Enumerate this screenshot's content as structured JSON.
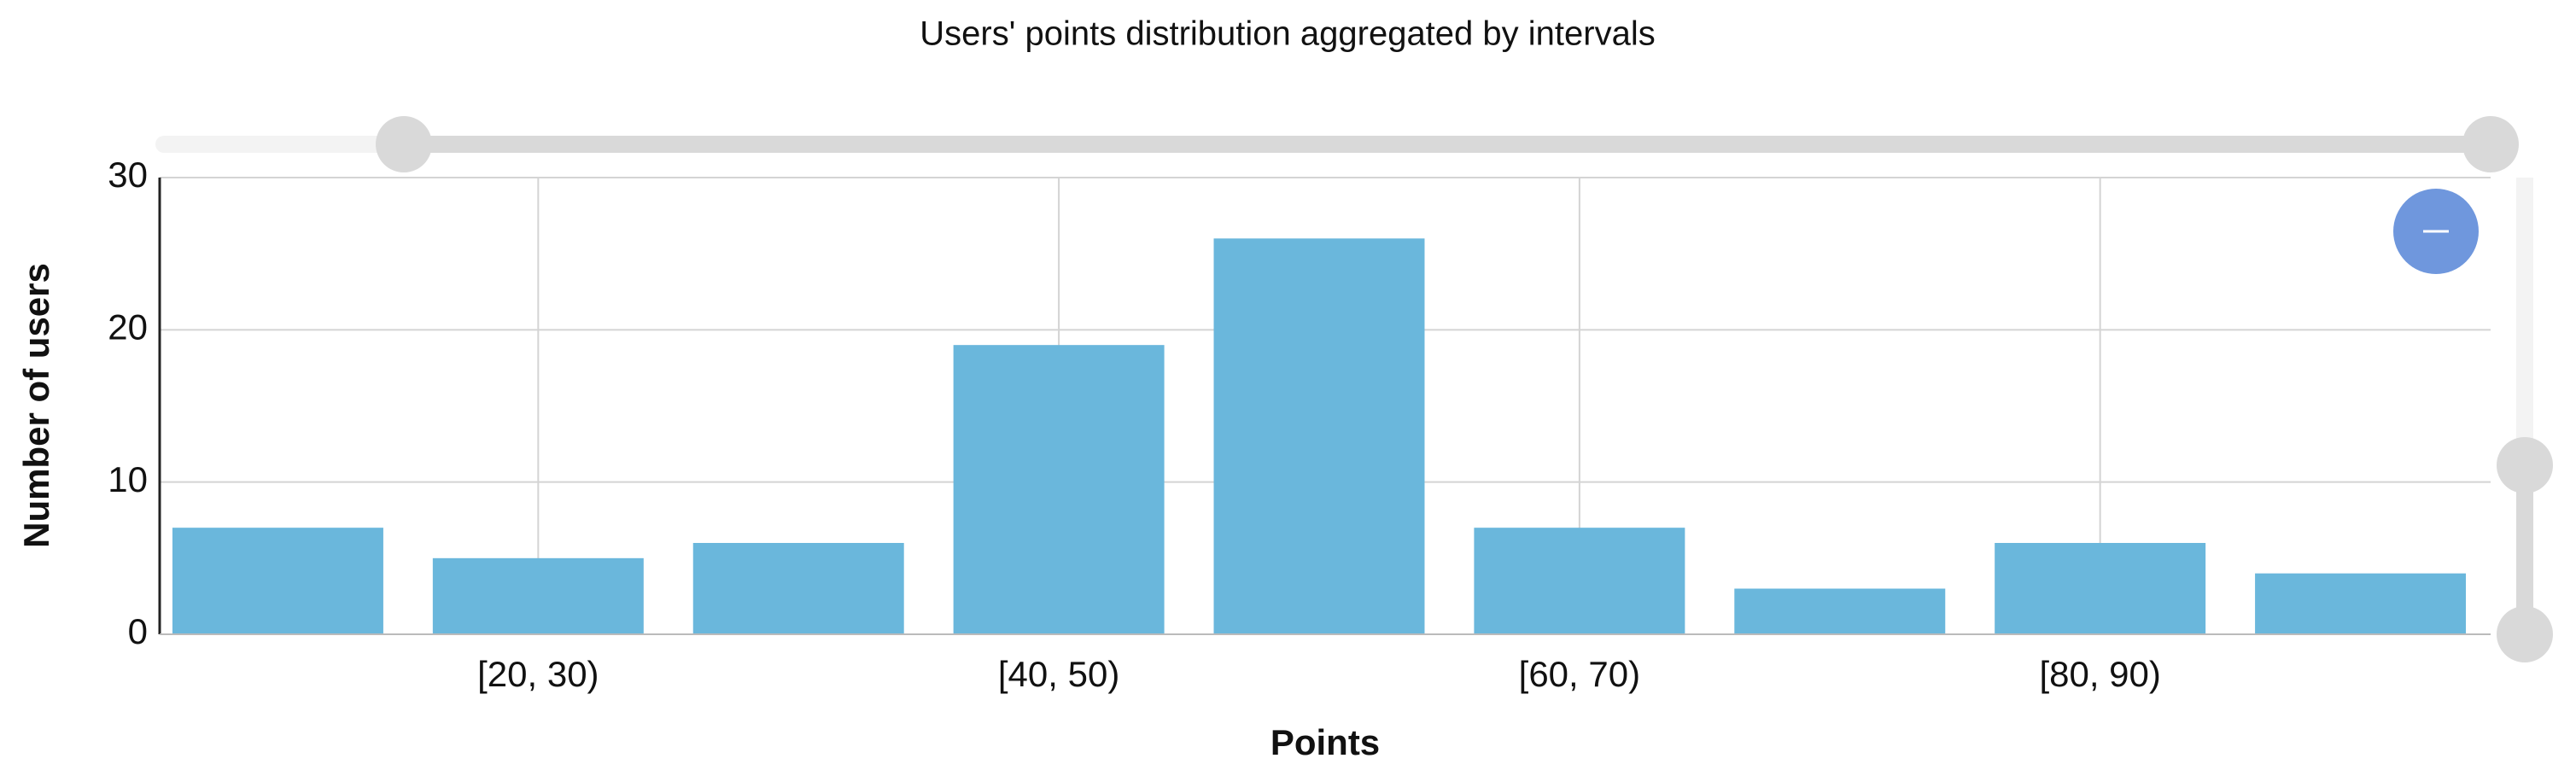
{
  "chart_data": {
    "type": "bar",
    "title": "Users' points distribution aggregated by intervals",
    "x_label": "Points",
    "y_label": "Number of users",
    "categories": [
      null,
      "[20, 30)",
      null,
      "[40, 50)",
      null,
      "[60, 70)",
      null,
      "[80, 90)",
      null
    ],
    "values": [
      7,
      5,
      6,
      19,
      26,
      7,
      3,
      6,
      4
    ],
    "color": "#6ab7dc",
    "ylim": [
      0,
      30
    ],
    "yticks": [
      0,
      10,
      20,
      30
    ],
    "grid": true
  }
}
